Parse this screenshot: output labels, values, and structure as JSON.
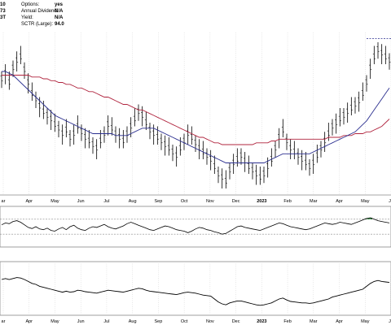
{
  "header": {
    "left_fragments": [
      "10",
      "73",
      "3T"
    ],
    "fields": [
      {
        "label": "Options:",
        "value": "yes"
      },
      {
        "label": "Annual Dividend:",
        "value": "N/A"
      },
      {
        "label": "Yield:",
        "value": "N/A"
      },
      {
        "label": "SCTR (Large):",
        "value": "94.0"
      }
    ]
  },
  "colors": {
    "price": "#000000",
    "ma_short": "#2b2f8f",
    "ma_long": "#b0243e",
    "panel_border": "#888888",
    "grid": "#cfcfcf",
    "rsi_fill": "#2e8b3e",
    "resistance": "#2b2f8f"
  },
  "chart_data": [
    {
      "type": "line",
      "panel": "price",
      "x_ticks": [
        "ar",
        "Apr",
        "May",
        "Jun",
        "Jul",
        "Aug",
        "Sep",
        "Oct",
        "Nov",
        "Dec",
        "2023",
        "Feb",
        "Mar",
        "Apr",
        "May",
        "Ju"
      ],
      "series": [
        {
          "key": "price_bars",
          "style": "ohlc-bars",
          "values": [
            60,
            63,
            58,
            66,
            70,
            72,
            65,
            58,
            52,
            49,
            45,
            42,
            40,
            38,
            35,
            33,
            30,
            32,
            28,
            30,
            34,
            31,
            28,
            26,
            24,
            22,
            26,
            30,
            35,
            33,
            30,
            28,
            26,
            30,
            34,
            38,
            42,
            40,
            36,
            32,
            30,
            28,
            26,
            24,
            22,
            20,
            18,
            22,
            26,
            30,
            28,
            25,
            22,
            20,
            18,
            16,
            12,
            8,
            6,
            4,
            10,
            14,
            16,
            18,
            15,
            12,
            10,
            8,
            6,
            8,
            12,
            16,
            22,
            28,
            32,
            26,
            22,
            20,
            18,
            16,
            14,
            12,
            14,
            18,
            22,
            26,
            30,
            34,
            36,
            38,
            40,
            42,
            44,
            46,
            48,
            52,
            58,
            66,
            72,
            76,
            74,
            72,
            70
          ]
        },
        {
          "key": "sma_short",
          "values": [
            64,
            64,
            63,
            62,
            60,
            58,
            56,
            54,
            52,
            50,
            48,
            46,
            44,
            42,
            40,
            39,
            38,
            37,
            36,
            35,
            34,
            33,
            32,
            31,
            30,
            30,
            30,
            30,
            30,
            30,
            29,
            29,
            29,
            29,
            30,
            31,
            32,
            33,
            33,
            33,
            33,
            32,
            31,
            30,
            29,
            28,
            27,
            26,
            25,
            24,
            23,
            22,
            21,
            20,
            19,
            18,
            17,
            16,
            15,
            14,
            14,
            14,
            14,
            14,
            14,
            14,
            14,
            14,
            14,
            14,
            15,
            16,
            17,
            18,
            19,
            19,
            19,
            19,
            19,
            19,
            19,
            19,
            20,
            21,
            22,
            23,
            24,
            25,
            26,
            27,
            28,
            29,
            30,
            31,
            33,
            35,
            37,
            40,
            43,
            46,
            49,
            52,
            55
          ]
        },
        {
          "key": "sma_long",
          "values": [
            62,
            62,
            62,
            62,
            62,
            62,
            62,
            62,
            61,
            61,
            61,
            60,
            60,
            59,
            59,
            58,
            58,
            57,
            57,
            56,
            55,
            55,
            54,
            53,
            53,
            52,
            51,
            50,
            50,
            49,
            48,
            47,
            46,
            46,
            45,
            44,
            43,
            43,
            42,
            41,
            40,
            39,
            38,
            37,
            36,
            35,
            34,
            33,
            32,
            31,
            30,
            29,
            28,
            28,
            27,
            26,
            25,
            25,
            24,
            24,
            24,
            24,
            24,
            24,
            24,
            24,
            24,
            25,
            25,
            25,
            25,
            26,
            26,
            27,
            27,
            27,
            27,
            27,
            27,
            27,
            27,
            27,
            27,
            27,
            27,
            27,
            28,
            28,
            28,
            28,
            29,
            29,
            29,
            30,
            30,
            30,
            31,
            31,
            32,
            33,
            34,
            36,
            38
          ]
        }
      ],
      "ylim": [
        0,
        80
      ]
    },
    {
      "type": "area",
      "panel": "rsi",
      "series": [
        {
          "key": "rsi",
          "values": [
            55,
            60,
            58,
            64,
            66,
            62,
            55,
            48,
            45,
            50,
            44,
            42,
            46,
            40,
            38,
            44,
            48,
            42,
            50,
            54,
            46,
            42,
            40,
            46,
            50,
            48,
            52,
            56,
            50,
            46,
            44,
            48,
            52,
            58,
            62,
            58,
            54,
            50,
            46,
            42,
            40,
            44,
            48,
            52,
            50,
            46,
            42,
            40,
            38,
            34,
            38,
            44,
            48,
            46,
            42,
            40,
            36,
            34,
            30,
            32,
            38,
            44,
            50,
            52,
            48,
            46,
            44,
            42,
            40,
            44,
            48,
            52,
            56,
            60,
            58,
            54,
            50,
            48,
            46,
            44,
            42,
            44,
            48,
            52,
            56,
            60,
            58,
            56,
            58,
            62,
            60,
            58,
            56,
            60,
            64,
            68,
            72,
            74,
            70,
            66,
            64,
            62,
            60
          ]
        }
      ],
      "ylim": [
        0,
        100
      ],
      "reference_lines": [
        30,
        70
      ]
    },
    {
      "type": "line",
      "panel": "lower",
      "x_ticks": [
        "ar",
        "Apr",
        "May",
        "Jun",
        "Jul",
        "Aug",
        "Sep",
        "Oct",
        "Nov",
        "Dec",
        "2023",
        "Feb",
        "Mar",
        "Apr",
        "May",
        "Ju"
      ],
      "series": [
        {
          "key": "lower_line",
          "values": [
            70,
            72,
            70,
            72,
            74,
            73,
            70,
            66,
            62,
            60,
            56,
            54,
            52,
            50,
            48,
            46,
            44,
            46,
            44,
            45,
            48,
            47,
            45,
            44,
            43,
            42,
            44,
            46,
            48,
            47,
            46,
            45,
            44,
            46,
            48,
            50,
            52,
            51,
            48,
            46,
            45,
            44,
            43,
            42,
            41,
            40,
            39,
            41,
            43,
            44,
            43,
            42,
            40,
            38,
            37,
            36,
            30,
            24,
            20,
            18,
            22,
            24,
            26,
            26,
            24,
            22,
            20,
            18,
            17,
            18,
            20,
            22,
            26,
            30,
            32,
            28,
            25,
            24,
            23,
            22,
            22,
            21,
            22,
            24,
            26,
            28,
            30,
            34,
            36,
            38,
            40,
            42,
            44,
            46,
            48,
            50,
            56,
            62,
            66,
            68,
            66,
            65,
            64
          ]
        }
      ],
      "ylim": [
        0,
        100
      ]
    }
  ]
}
